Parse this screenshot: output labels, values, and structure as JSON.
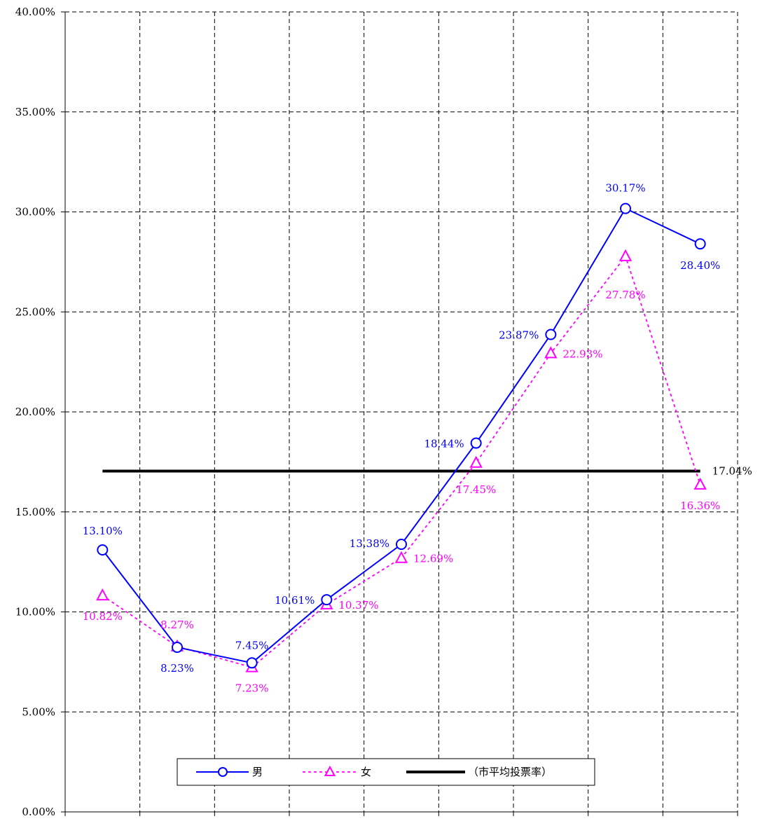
{
  "chart_data": {
    "type": "line",
    "title": "",
    "xlabel": "",
    "ylabel": "",
    "ylim": [
      0,
      40
    ],
    "y_ticks": [
      "0.00%",
      "5.00%",
      "10.00%",
      "15.00%",
      "20.00%",
      "25.00%",
      "30.00%",
      "35.00%",
      "40.00%"
    ],
    "grid": true,
    "categories_count": 9,
    "series": [
      {
        "name": "男",
        "color": "#0000ff",
        "line_style": "solid",
        "marker": "circle",
        "values": [
          13.1,
          8.23,
          7.45,
          10.61,
          13.38,
          18.44,
          23.87,
          30.17,
          28.4
        ],
        "labels": [
          "13.10%",
          "8.23%",
          "7.45%",
          "10.61%",
          "13.38%",
          "18.44%",
          "23.87%",
          "30.17%",
          "28.40%"
        ]
      },
      {
        "name": "女",
        "color": "#ff00ff",
        "line_style": "dotted",
        "marker": "triangle",
        "values": [
          10.82,
          8.27,
          7.23,
          10.37,
          12.69,
          17.45,
          22.93,
          27.78,
          16.36
        ],
        "labels": [
          "10.82%",
          "8.27%",
          "7.23%",
          "10.37%",
          "12.69%",
          "17.45%",
          "22.93%",
          "27.78%",
          "16.36%"
        ]
      }
    ],
    "reference_line": {
      "name": "（市平均投票率）",
      "color": "#000000",
      "value": 17.04,
      "label": "17.04%"
    },
    "legend_position": "bottom-center"
  }
}
